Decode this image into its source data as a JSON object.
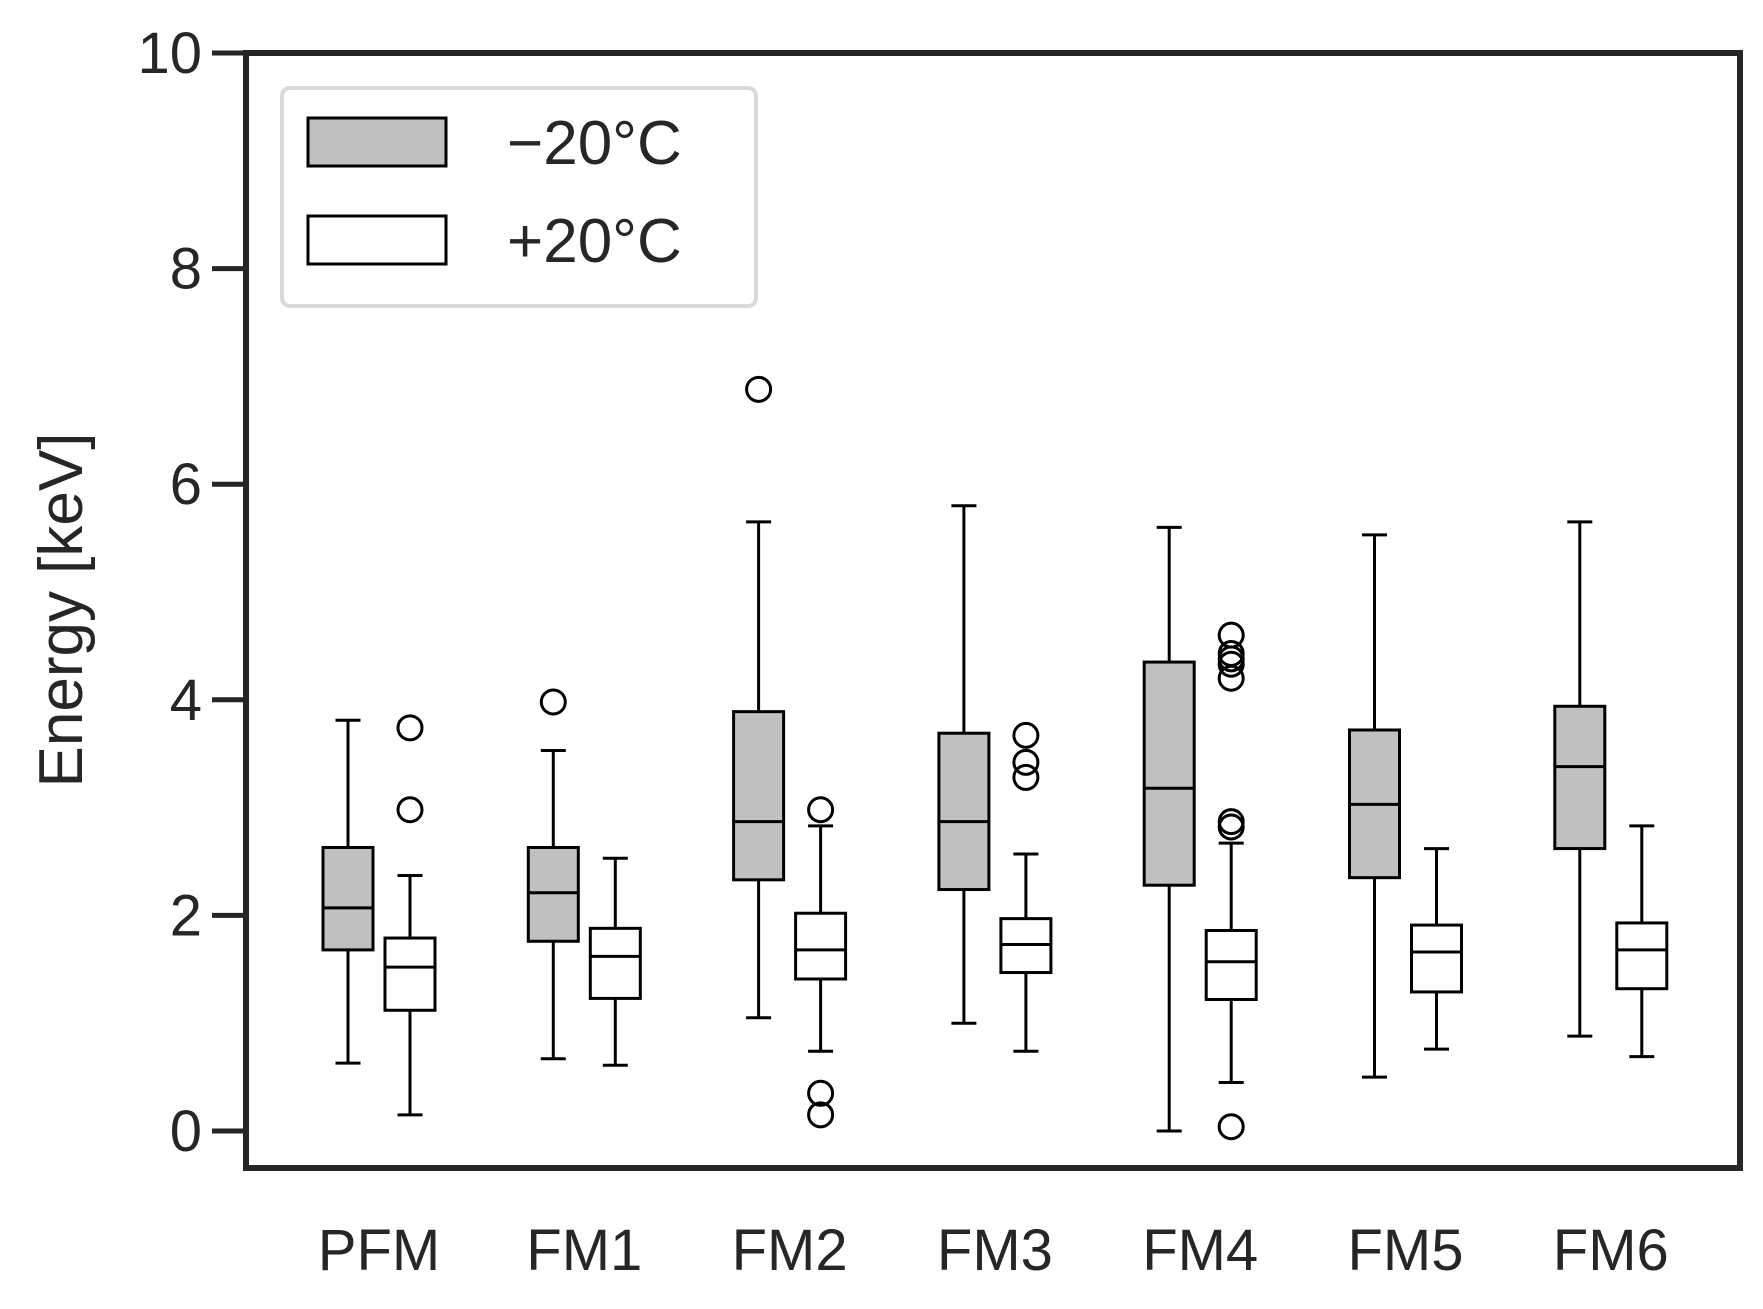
{
  "chart_data": {
    "type": "box",
    "title": "",
    "xlabel": "",
    "ylabel": "Energy [keV]",
    "ylim": [
      -0.35,
      10
    ],
    "yticks": [
      0,
      2,
      4,
      6,
      8,
      10
    ],
    "grid": false,
    "legend_position": "top-left",
    "categories": [
      "PFM",
      "FM1",
      "FM2",
      "FM3",
      "FM4",
      "FM5",
      "FM6"
    ],
    "series": [
      {
        "name": "−20°C",
        "fill": "#c0c0c0",
        "stroke": "#000000",
        "boxes": [
          {
            "whisker_low": 0.63,
            "q1": 1.68,
            "median": 2.07,
            "q3": 2.63,
            "whisker_high": 3.81,
            "outliers": []
          },
          {
            "whisker_low": 0.67,
            "q1": 1.76,
            "median": 2.21,
            "q3": 2.63,
            "whisker_high": 3.53,
            "outliers": [
              3.98
            ]
          },
          {
            "whisker_low": 1.05,
            "q1": 2.33,
            "median": 2.87,
            "q3": 3.89,
            "whisker_high": 5.65,
            "outliers": [
              6.88
            ]
          },
          {
            "whisker_low": 1.0,
            "q1": 2.24,
            "median": 2.87,
            "q3": 3.69,
            "whisker_high": 5.8,
            "outliers": []
          },
          {
            "whisker_low": 0.0,
            "q1": 2.28,
            "median": 3.18,
            "q3": 4.35,
            "whisker_high": 5.6,
            "outliers": []
          },
          {
            "whisker_low": 0.5,
            "q1": 2.35,
            "median": 3.03,
            "q3": 3.72,
            "whisker_high": 5.53,
            "outliers": []
          },
          {
            "whisker_low": 0.88,
            "q1": 2.62,
            "median": 3.38,
            "q3": 3.94,
            "whisker_high": 5.65,
            "outliers": []
          }
        ]
      },
      {
        "name": "+20°C",
        "fill": "#ffffff",
        "stroke": "#000000",
        "boxes": [
          {
            "whisker_low": 0.15,
            "q1": 1.12,
            "median": 1.52,
            "q3": 1.79,
            "whisker_high": 2.37,
            "outliers": [
              2.98,
              3.74
            ]
          },
          {
            "whisker_low": 0.61,
            "q1": 1.23,
            "median": 1.62,
            "q3": 1.88,
            "whisker_high": 2.53,
            "outliers": []
          },
          {
            "whisker_low": 0.74,
            "q1": 1.41,
            "median": 1.68,
            "q3": 2.02,
            "whisker_high": 2.83,
            "outliers": [
              0.15,
              0.35,
              2.98
            ]
          },
          {
            "whisker_low": 0.74,
            "q1": 1.47,
            "median": 1.73,
            "q3": 1.97,
            "whisker_high": 2.57,
            "outliers": [
              3.28,
              3.42,
              3.67
            ]
          },
          {
            "whisker_low": 0.45,
            "q1": 1.22,
            "median": 1.57,
            "q3": 1.86,
            "whisker_high": 2.67,
            "outliers": [
              0.04,
              2.82,
              2.87,
              4.2,
              4.33,
              4.38,
              4.43,
              4.6
            ]
          },
          {
            "whisker_low": 0.76,
            "q1": 1.29,
            "median": 1.66,
            "q3": 1.91,
            "whisker_high": 2.62,
            "outliers": []
          },
          {
            "whisker_low": 0.69,
            "q1": 1.32,
            "median": 1.68,
            "q3": 1.93,
            "whisker_high": 2.83,
            "outliers": []
          }
        ]
      }
    ]
  }
}
